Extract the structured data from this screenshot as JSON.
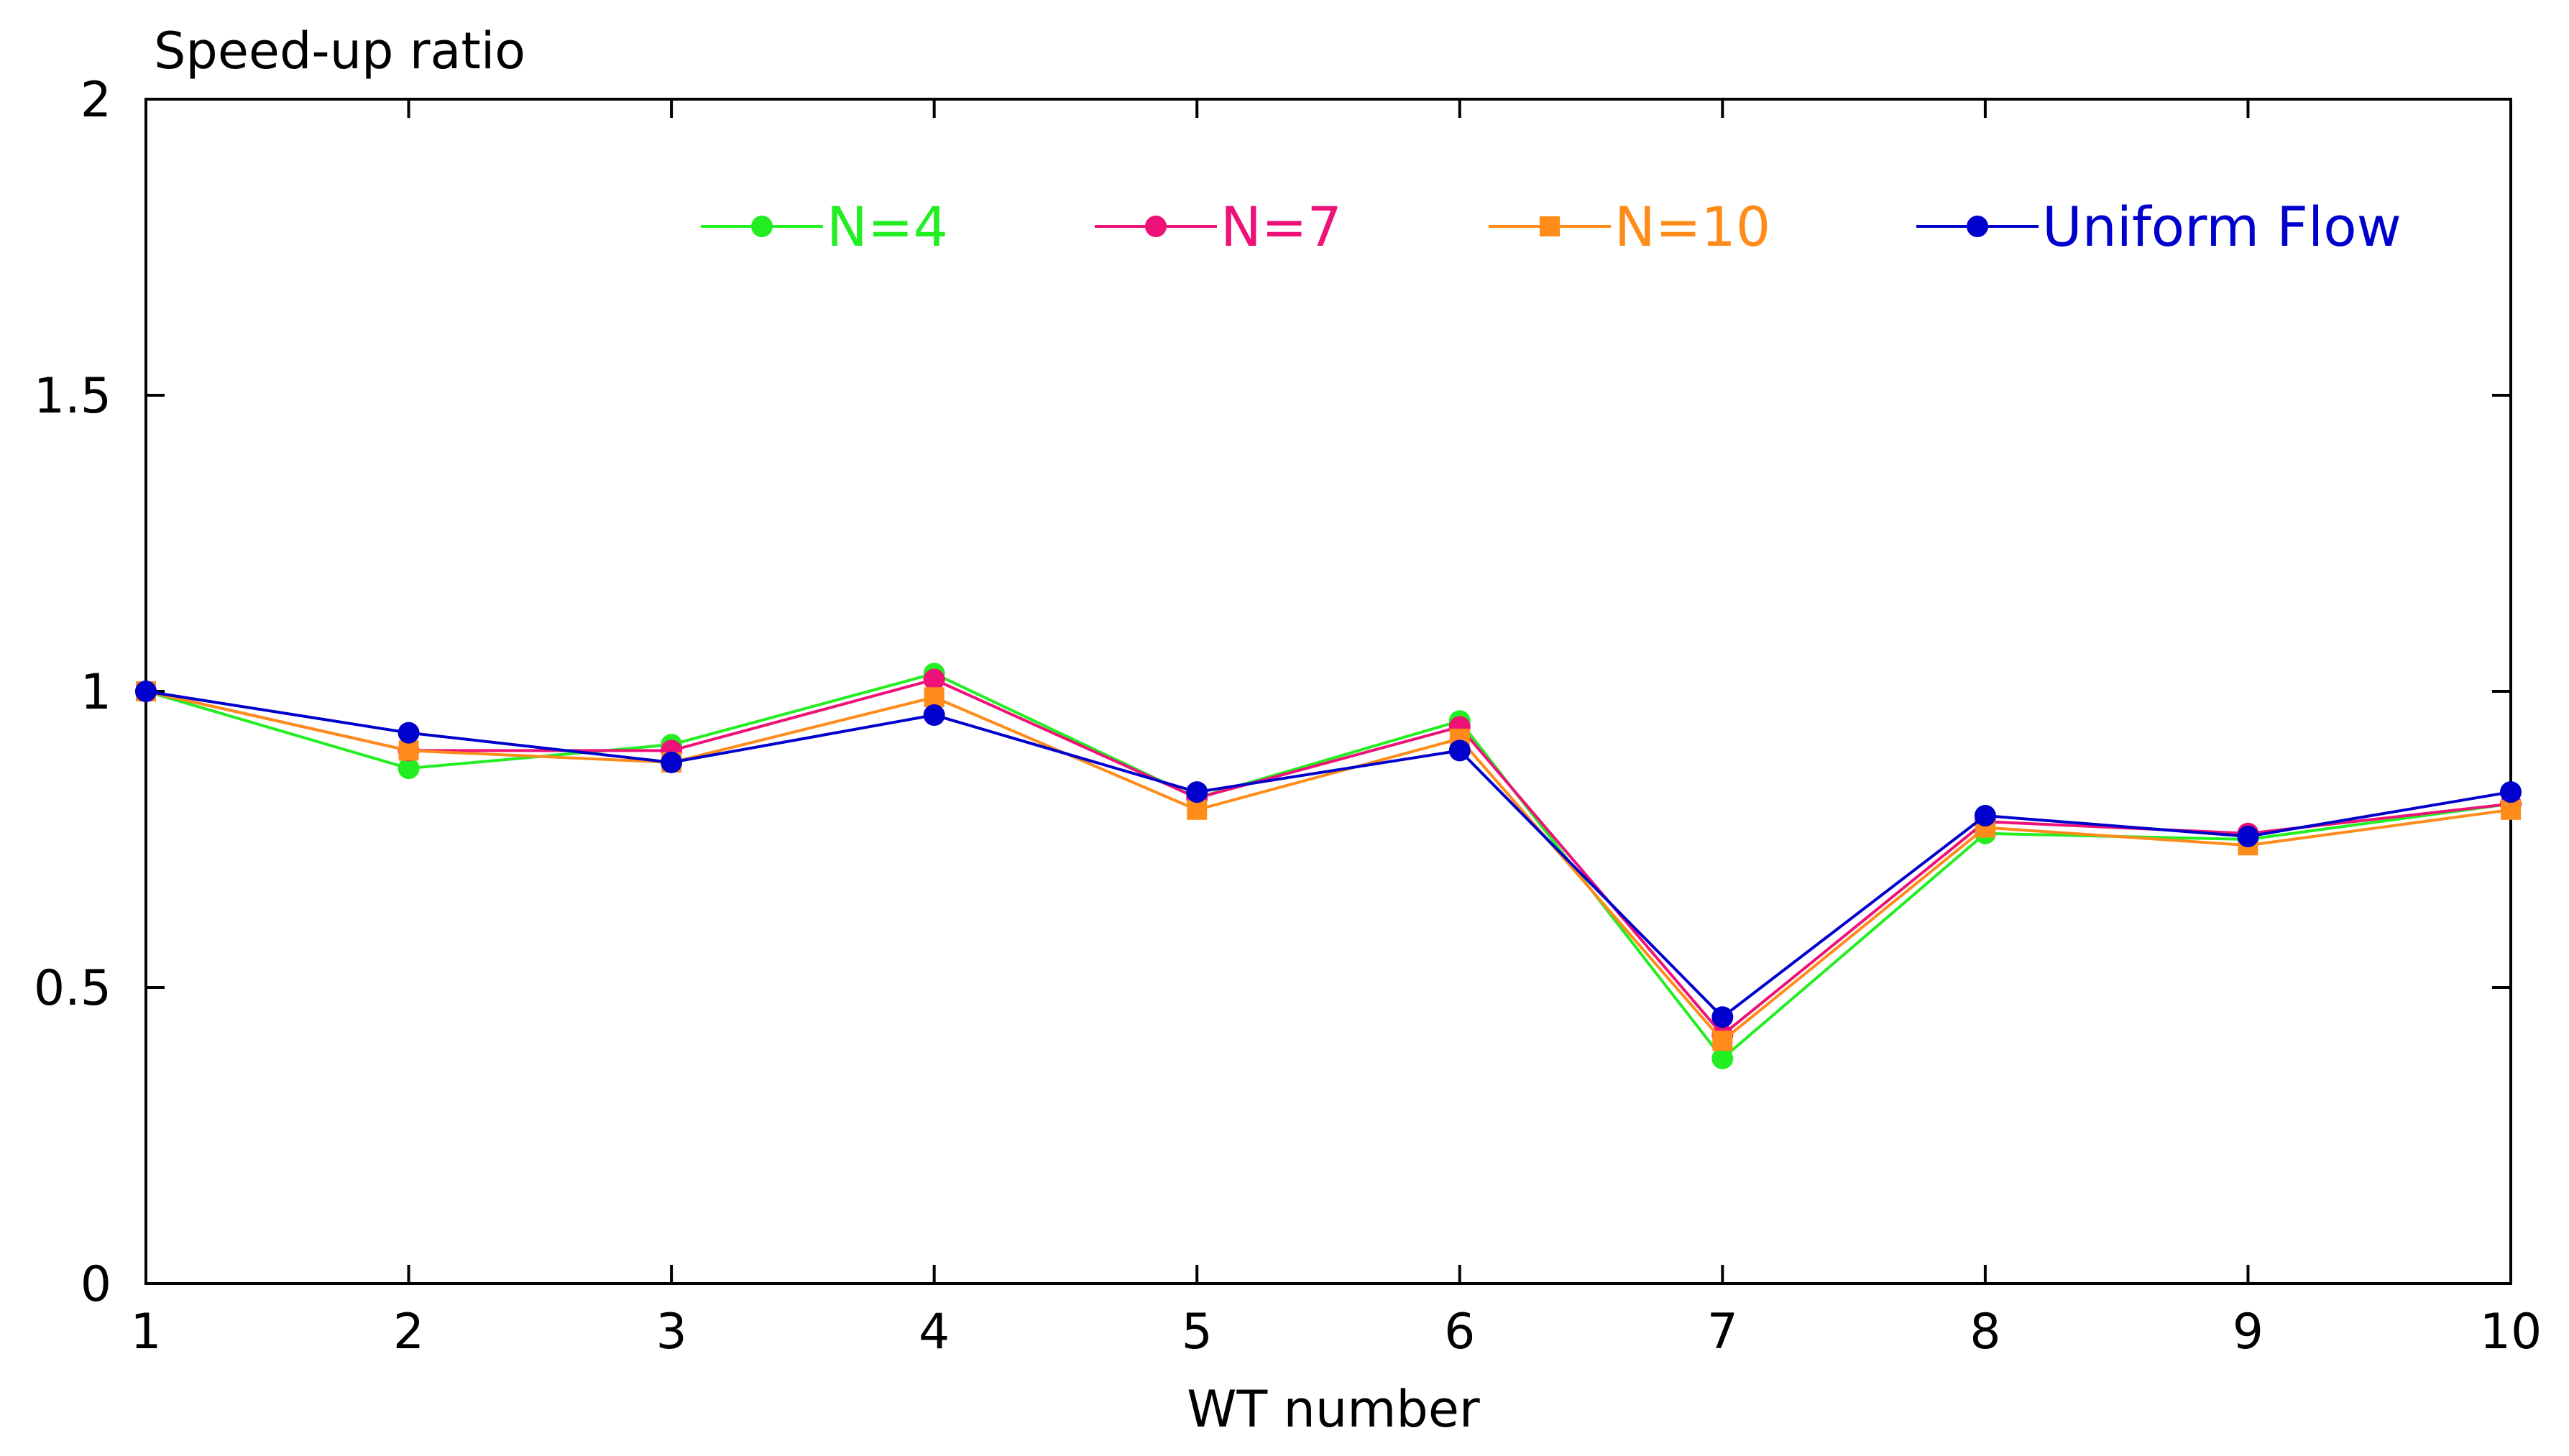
{
  "chart_data": {
    "type": "line",
    "title": "",
    "ylabel": "Speed-up ratio",
    "xlabel": "WT number",
    "x": [
      1,
      2,
      3,
      4,
      5,
      6,
      7,
      8,
      9,
      10
    ],
    "xlim": [
      1,
      10
    ],
    "ylim": [
      0,
      2
    ],
    "xticks": [
      "1",
      "2",
      "3",
      "4",
      "5",
      "6",
      "7",
      "8",
      "9",
      "10"
    ],
    "yticks": [
      {
        "value": 0,
        "label": "0"
      },
      {
        "value": 0.5,
        "label": "0.5"
      },
      {
        "value": 1,
        "label": "1"
      },
      {
        "value": 1.5,
        "label": "1.5"
      },
      {
        "value": 2,
        "label": "2"
      }
    ],
    "grid": false,
    "legend_position": "top",
    "series": [
      {
        "name": "N=4",
        "color": "#22ee22",
        "marker": "circle",
        "values": [
          1.0,
          0.87,
          0.91,
          1.03,
          0.82,
          0.95,
          0.38,
          0.76,
          0.75,
          0.81
        ]
      },
      {
        "name": "N=7",
        "color": "#ee1177",
        "marker": "circle",
        "values": [
          1.0,
          0.9,
          0.9,
          1.02,
          0.82,
          0.94,
          0.42,
          0.78,
          0.76,
          0.81
        ]
      },
      {
        "name": "N=10",
        "color": "#ff8c1a",
        "marker": "square",
        "values": [
          1.0,
          0.9,
          0.88,
          0.99,
          0.8,
          0.92,
          0.41,
          0.77,
          0.74,
          0.8
        ]
      },
      {
        "name": "Uniform Flow",
        "color": "#0000cc",
        "marker": "circle",
        "values": [
          1.0,
          0.93,
          0.88,
          0.96,
          0.83,
          0.9,
          0.45,
          0.79,
          0.755,
          0.83
        ]
      }
    ]
  }
}
